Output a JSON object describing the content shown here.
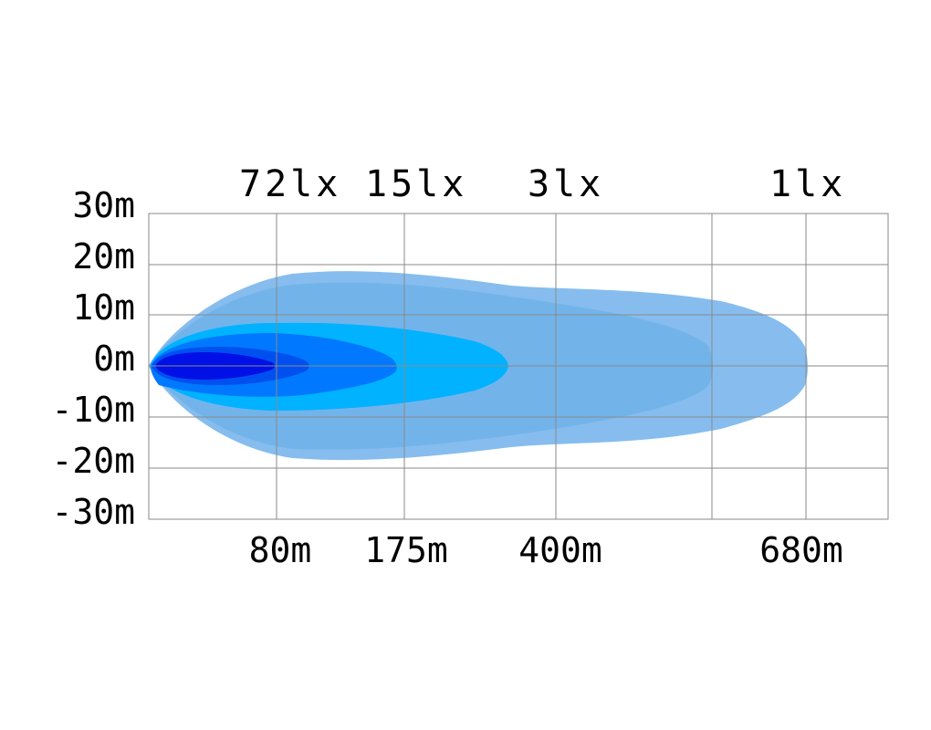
{
  "chart_data": {
    "type": "area",
    "chart_kind": "beam-pattern isolux diagram",
    "y_tick_labels": [
      "30m",
      "20m",
      "10m",
      "0m",
      "-10m",
      "-20m",
      "-30m"
    ],
    "y_ticks": [
      30,
      20,
      10,
      0,
      -10,
      -20,
      -30
    ],
    "ylim": [
      -30,
      30
    ],
    "grid": true,
    "lux_labels": [
      {
        "text": "72lx",
        "distance": 80
      },
      {
        "text": "15lx",
        "distance": 175
      },
      {
        "text": "3lx",
        "distance": 400
      },
      {
        "text": "1lx",
        "distance": 680
      }
    ],
    "distance_labels": [
      {
        "text": "80m",
        "distance": 80
      },
      {
        "text": "175m",
        "distance": 175
      },
      {
        "text": "400m",
        "distance": 400
      },
      {
        "text": "680m",
        "distance": 680
      }
    ],
    "vertical_gridlines_at": [
      80,
      175,
      400,
      560,
      680,
      750
    ],
    "zones": [
      {
        "lux": 1,
        "reach": 680,
        "half_width": 18,
        "color": "#86bdee"
      },
      {
        "lux": 3,
        "reach": 560,
        "half_width": 16,
        "color": "#72b4ea"
      },
      {
        "lux": 15,
        "reach": 300,
        "half_width": 8,
        "color": "#00b2ff"
      },
      {
        "lux": 72,
        "reach": 210,
        "half_width": 6.5,
        "color": "#0078ff"
      },
      {
        "lux": null,
        "reach": 120,
        "half_width": 3.5,
        "color": "#0050f0"
      },
      {
        "lux": null,
        "reach": 95,
        "half_width": 2.5,
        "color": "#0010e6"
      }
    ]
  }
}
